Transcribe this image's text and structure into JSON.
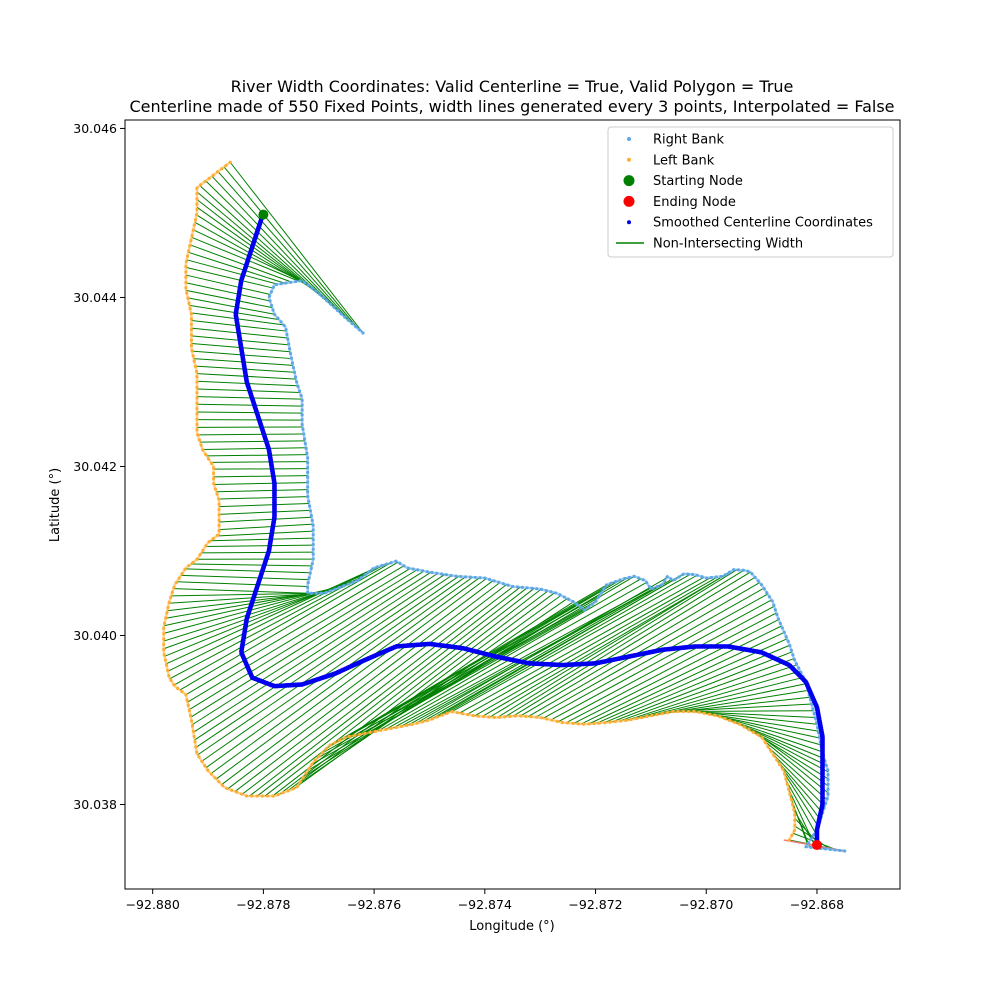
{
  "chart_data": {
    "type": "scatter",
    "title": "River Width Coordinates: Valid Centerline = True, Valid Polygon = True",
    "subtitle": "Centerline made of 550 Fixed Points, width lines generated every 3 points, Interpolated = False",
    "xlabel": "Longitude (°)",
    "ylabel": "Latitude (°)",
    "xlim": [
      -92.8805,
      -92.8665
    ],
    "ylim": [
      30.037,
      30.0461
    ],
    "x_ticks": [
      -92.88,
      -92.878,
      -92.876,
      -92.874,
      -92.872,
      -92.87,
      -92.868
    ],
    "x_tick_labels": [
      "−92.880",
      "−92.878",
      "−92.876",
      "−92.874",
      "−92.872",
      "−92.870",
      "−92.868"
    ],
    "y_ticks": [
      30.038,
      30.04,
      30.042,
      30.044,
      30.046
    ],
    "y_tick_labels": [
      "30.038",
      "30.040",
      "30.042",
      "30.044",
      "30.046"
    ],
    "grid": false,
    "legend_position": "top-right",
    "colors": {
      "right_bank": "#5fa8e8",
      "left_bank": "#ffad33",
      "start": "#008000",
      "end": "#ff0000",
      "centerline": "#0000ee",
      "width_line": "#008000",
      "end_segment": "#f08080"
    },
    "legend": [
      {
        "key": "right_bank",
        "label": "Right Bank",
        "marker": "small-dot"
      },
      {
        "key": "left_bank",
        "label": "Left Bank",
        "marker": "small-dot"
      },
      {
        "key": "start",
        "label": "Starting Node",
        "marker": "big-dot"
      },
      {
        "key": "end",
        "label": "Ending Node",
        "marker": "big-dot"
      },
      {
        "key": "centerline",
        "label": "Smoothed Centerline Coordinates",
        "marker": "small-dot"
      },
      {
        "key": "width_line",
        "label": "Non-Intersecting Width",
        "marker": "line"
      }
    ],
    "series": {
      "right_bank": [
        [
          -92.8762,
          30.04358
        ],
        [
          -92.8765,
          30.04375
        ],
        [
          -92.877,
          30.04405
        ],
        [
          -92.8773,
          30.0442
        ],
        [
          -92.8775,
          30.04418
        ],
        [
          -92.8778,
          30.04415
        ],
        [
          -92.8779,
          30.044
        ],
        [
          -92.8778,
          30.0438
        ],
        [
          -92.8776,
          30.04365
        ],
        [
          -92.8775,
          30.0433
        ],
        [
          -92.8774,
          30.043
        ],
        [
          -92.8773,
          30.0428
        ],
        [
          -92.8773,
          30.0425
        ],
        [
          -92.8772,
          30.0421
        ],
        [
          -92.8772,
          30.04165
        ],
        [
          -92.8771,
          30.0413
        ],
        [
          -92.8771,
          30.0409
        ],
        [
          -92.8772,
          30.0406
        ],
        [
          -92.8772,
          30.0405
        ],
        [
          -92.8769,
          30.0405
        ],
        [
          -92.8765,
          30.0406
        ],
        [
          -92.8763,
          30.04065
        ],
        [
          -92.876,
          30.0408
        ],
        [
          -92.8756,
          30.04088
        ],
        [
          -92.8754,
          30.0408
        ],
        [
          -92.875,
          30.04075
        ],
        [
          -92.8745,
          30.0407
        ],
        [
          -92.874,
          30.04068
        ],
        [
          -92.8735,
          30.04058
        ],
        [
          -92.873,
          30.04055
        ],
        [
          -92.8727,
          30.0405
        ],
        [
          -92.8724,
          30.0404
        ],
        [
          -92.8722,
          30.0403
        ],
        [
          -92.872,
          30.0404
        ],
        [
          -92.8718,
          30.0406
        ],
        [
          -92.8715,
          30.04067
        ],
        [
          -92.8713,
          30.0407
        ],
        [
          -92.8711,
          30.04065
        ],
        [
          -92.871,
          30.04055
        ],
        [
          -92.8708,
          30.0406
        ],
        [
          -92.8707,
          30.0407
        ],
        [
          -92.8706,
          30.04065
        ],
        [
          -92.8704,
          30.04073
        ],
        [
          -92.8702,
          30.04072
        ],
        [
          -92.87,
          30.04068
        ],
        [
          -92.8697,
          30.0407
        ],
        [
          -92.8695,
          30.04078
        ],
        [
          -92.8693,
          30.04077
        ],
        [
          -92.8692,
          30.04075
        ],
        [
          -92.869,
          30.0406
        ],
        [
          -92.8688,
          30.0404
        ],
        [
          -92.8687,
          30.0402
        ],
        [
          -92.8685,
          30.0399
        ],
        [
          -92.8684,
          30.0397
        ],
        [
          -92.8682,
          30.03945
        ],
        [
          -92.8681,
          30.0392
        ],
        [
          -92.868,
          30.03895
        ],
        [
          -92.8679,
          30.0386
        ],
        [
          -92.8678,
          30.0384
        ],
        [
          -92.8678,
          30.0382
        ],
        [
          -92.8678,
          30.0381
        ],
        [
          -92.8679,
          30.0379
        ],
        [
          -92.868,
          30.0377
        ],
        [
          -92.8681,
          30.0376
        ],
        [
          -92.8682,
          30.0375
        ],
        [
          -92.8675,
          30.03745
        ]
      ],
      "left_bank": [
        [
          -92.8786,
          30.0456
        ],
        [
          -92.8792,
          30.0453
        ],
        [
          -92.8792,
          30.045
        ],
        [
          -92.8793,
          30.0447
        ],
        [
          -92.8794,
          30.0444
        ],
        [
          -92.8794,
          30.0441
        ],
        [
          -92.8793,
          30.0438
        ],
        [
          -92.8793,
          30.0434
        ],
        [
          -92.8792,
          30.0431
        ],
        [
          -92.8792,
          30.0427
        ],
        [
          -92.8792,
          30.0424
        ],
        [
          -92.8791,
          30.0422
        ],
        [
          -92.8789,
          30.042
        ],
        [
          -92.8789,
          30.0418
        ],
        [
          -92.8788,
          30.0416
        ],
        [
          -92.8788,
          30.0414
        ],
        [
          -92.8788,
          30.0412
        ],
        [
          -92.879,
          30.0411
        ],
        [
          -92.8792,
          30.0409
        ],
        [
          -92.8794,
          30.0408
        ],
        [
          -92.8796,
          30.0406
        ],
        [
          -92.8797,
          30.0404
        ],
        [
          -92.8798,
          30.0401
        ],
        [
          -92.8798,
          30.0398
        ],
        [
          -92.8797,
          30.0395
        ],
        [
          -92.8796,
          30.0394
        ],
        [
          -92.8794,
          30.0393
        ],
        [
          -92.8793,
          30.039
        ],
        [
          -92.8792,
          30.0386
        ],
        [
          -92.879,
          30.0384
        ],
        [
          -92.8787,
          30.0382
        ],
        [
          -92.8783,
          30.0381
        ],
        [
          -92.8778,
          30.0381
        ],
        [
          -92.8774,
          30.0382
        ],
        [
          -92.8771,
          30.0385
        ],
        [
          -92.8768,
          30.0387
        ],
        [
          -92.8765,
          30.0388
        ],
        [
          -92.8761,
          30.03885
        ],
        [
          -92.8757,
          30.0389
        ],
        [
          -92.8753,
          30.03895
        ],
        [
          -92.875,
          30.039
        ],
        [
          -92.8746,
          30.0391
        ],
        [
          -92.8742,
          30.03905
        ],
        [
          -92.8738,
          30.03903
        ],
        [
          -92.8734,
          30.03905
        ],
        [
          -92.873,
          30.03903
        ],
        [
          -92.8726,
          30.03897
        ],
        [
          -92.8722,
          30.03895
        ],
        [
          -92.8718,
          30.03897
        ],
        [
          -92.8714,
          30.039
        ],
        [
          -92.871,
          30.03905
        ],
        [
          -92.8706,
          30.0391
        ],
        [
          -92.8702,
          30.0391
        ],
        [
          -92.8698,
          30.03905
        ],
        [
          -92.8694,
          30.03895
        ],
        [
          -92.869,
          30.0388
        ],
        [
          -92.8688,
          30.0386
        ],
        [
          -92.8686,
          30.0384
        ],
        [
          -92.8685,
          30.03815
        ],
        [
          -92.8684,
          30.0379
        ],
        [
          -92.8684,
          30.0377
        ],
        [
          -92.8685,
          30.03758
        ]
      ],
      "centerline": [
        [
          -92.878,
          30.045
        ],
        [
          -92.8782,
          30.0446
        ],
        [
          -92.8784,
          30.0442
        ],
        [
          -92.8785,
          30.0438
        ],
        [
          -92.8784,
          30.0434
        ],
        [
          -92.8783,
          30.043
        ],
        [
          -92.8781,
          30.0426
        ],
        [
          -92.8779,
          30.0422
        ],
        [
          -92.8778,
          30.0418
        ],
        [
          -92.8778,
          30.0414
        ],
        [
          -92.8779,
          30.041
        ],
        [
          -92.8781,
          30.0406
        ],
        [
          -92.8783,
          30.0402
        ],
        [
          -92.8784,
          30.0398
        ],
        [
          -92.8782,
          30.0395
        ],
        [
          -92.8778,
          30.0394
        ],
        [
          -92.8773,
          30.03942
        ],
        [
          -92.8767,
          30.03955
        ],
        [
          -92.8762,
          30.0397
        ],
        [
          -92.8756,
          30.03987
        ],
        [
          -92.875,
          30.0399
        ],
        [
          -92.8744,
          30.03985
        ],
        [
          -92.8738,
          30.03975
        ],
        [
          -92.8732,
          30.03967
        ],
        [
          -92.8726,
          30.03965
        ],
        [
          -92.872,
          30.03967
        ],
        [
          -92.8714,
          30.03975
        ],
        [
          -92.8708,
          30.03983
        ],
        [
          -92.8702,
          30.03987
        ],
        [
          -92.8696,
          30.03987
        ],
        [
          -92.869,
          30.0398
        ],
        [
          -92.8685,
          30.03965
        ],
        [
          -92.8682,
          30.03945
        ],
        [
          -92.868,
          30.03915
        ],
        [
          -92.8679,
          30.0388
        ],
        [
          -92.8679,
          30.0384
        ],
        [
          -92.8679,
          30.038
        ],
        [
          -92.868,
          30.0377
        ],
        [
          -92.868,
          30.03755
        ]
      ],
      "start_node": [
        -92.878,
        30.04498
      ],
      "end_node": [
        -92.868,
        30.03752
      ],
      "end_segment": [
        [
          -92.8686,
          30.03758
        ],
        [
          -92.8675,
          30.03745
        ]
      ],
      "width_line_count": 180
    }
  }
}
